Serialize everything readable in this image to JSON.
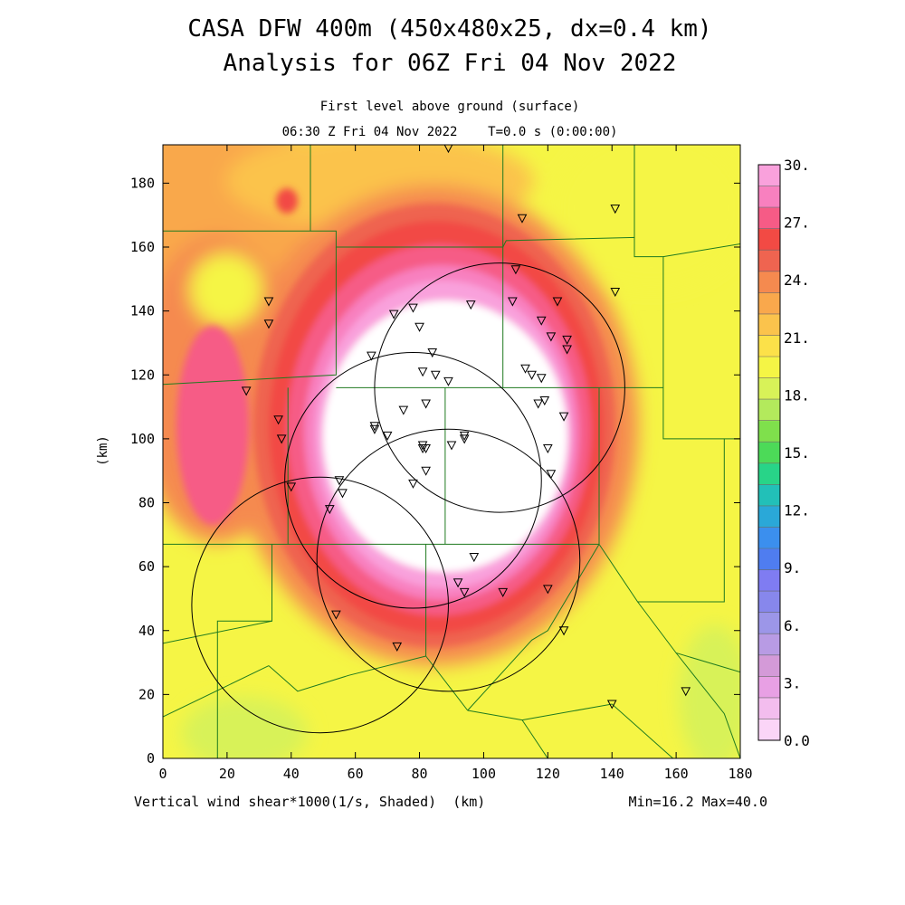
{
  "header": {
    "title_line1": "CASA DFW 400m (450x480x25, dx=0.4 km)",
    "title_line2": "Analysis for 06Z Fri 04 Nov 2022",
    "subtitle": "First level above ground (surface)",
    "time_line": "06:30 Z Fri 04 Nov 2022    T=0.0 s (0:00:00)"
  },
  "footer": {
    "variable_label": "Vertical wind shear*1000(1/s, Shaded)  (km)",
    "minmax": "Min=16.2 Max=40.0"
  },
  "axes": {
    "ylabel": "(km)",
    "xlim": [
      0,
      180
    ],
    "ylim": [
      0,
      192
    ],
    "xticks": [
      0,
      20,
      40,
      60,
      80,
      100,
      120,
      140,
      160,
      180
    ],
    "yticks": [
      0,
      20,
      40,
      60,
      80,
      100,
      120,
      140,
      160,
      180
    ]
  },
  "colorbar": {
    "levels": [
      0,
      1.5,
      3,
      4.5,
      6,
      7.5,
      9,
      10.5,
      12,
      13.5,
      15,
      16.5,
      18,
      19.5,
      21,
      22.5,
      24,
      25.5,
      27,
      28.5,
      30
    ],
    "tick_labels": [
      "0.0",
      "3.",
      "6.",
      "9.",
      "12.",
      "15.",
      "18.",
      "21.",
      "24.",
      "27.",
      "30."
    ],
    "colors": [
      "#fbd5f7",
      "#f3bdee",
      "#e8a0e4",
      "#d49ad8",
      "#b89be4",
      "#9c96e8",
      "#8787ec",
      "#7f7cf2",
      "#4f7df0",
      "#3b8fee",
      "#2aa8d8",
      "#22c0b8",
      "#28d488",
      "#4cda58",
      "#7fe04c",
      "#b3ea5c",
      "#d8f258",
      "#f5f545",
      "#fce149",
      "#fbc34c",
      "#f9a84c",
      "#f58a4f",
      "#ef6450",
      "#f24a44",
      "#f65b86",
      "#f880bf",
      "#f9a1dc"
    ]
  },
  "chart_data": {
    "type": "heatmap",
    "title": "CASA DFW 400m (450x480x25, dx=0.4 km)",
    "subtitle": "Analysis for 06Z Fri 04 Nov 2022",
    "xlabel": "(km)",
    "ylabel": "(km)",
    "xlim": [
      0,
      180
    ],
    "ylim": [
      0,
      192
    ],
    "value_range": {
      "min": 16.2,
      "max": 40.0
    },
    "field_description": "Vertical wind shear*1000(1/s, Shaded)",
    "saturated_core": {
      "center_km": [
        86,
        95
      ],
      "note": "values above 30 shown white"
    },
    "radar_rings": [
      {
        "center_km": [
          105,
          116
        ],
        "radius_km": 39
      },
      {
        "center_km": [
          78,
          87
        ],
        "radius_km": 40
      },
      {
        "center_km": [
          89,
          62
        ],
        "radius_km": 41
      },
      {
        "center_km": [
          49,
          48
        ],
        "radius_km": 40
      }
    ],
    "stations_km": [
      [
        33,
        143
      ],
      [
        33,
        136
      ],
      [
        26,
        115
      ],
      [
        36,
        106
      ],
      [
        37,
        100
      ],
      [
        65,
        126
      ],
      [
        72,
        139
      ],
      [
        78,
        141
      ],
      [
        80,
        135
      ],
      [
        84,
        127
      ],
      [
        81,
        121
      ],
      [
        85,
        120
      ],
      [
        89,
        118
      ],
      [
        96,
        142
      ],
      [
        110,
        153
      ],
      [
        109,
        143
      ],
      [
        113,
        122
      ],
      [
        115,
        120
      ],
      [
        118,
        119
      ],
      [
        123,
        143
      ],
      [
        118,
        137
      ],
      [
        121,
        132
      ],
      [
        126,
        131
      ],
      [
        126,
        128
      ],
      [
        117,
        111
      ],
      [
        119,
        112
      ],
      [
        125,
        107
      ],
      [
        82,
        111
      ],
      [
        75,
        109
      ],
      [
        66,
        104
      ],
      [
        66,
        103
      ],
      [
        70,
        101
      ],
      [
        81,
        97
      ],
      [
        82,
        97
      ],
      [
        81,
        98
      ],
      [
        90,
        98
      ],
      [
        94,
        100
      ],
      [
        94,
        101
      ],
      [
        120,
        97
      ],
      [
        121,
        89
      ],
      [
        82,
        90
      ],
      [
        78,
        86
      ],
      [
        55,
        87
      ],
      [
        56,
        83
      ],
      [
        40,
        85
      ],
      [
        52,
        78
      ],
      [
        97,
        63
      ],
      [
        92,
        55
      ],
      [
        94,
        52
      ],
      [
        106,
        52
      ],
      [
        120,
        53
      ],
      [
        125,
        40
      ],
      [
        54,
        45
      ],
      [
        73,
        35
      ],
      [
        141,
        172
      ],
      [
        112,
        169
      ],
      [
        141,
        146
      ],
      [
        140,
        17
      ],
      [
        163,
        21
      ],
      [
        89,
        191
      ]
    ],
    "county_boundaries_km": [
      [
        [
          46,
          192
        ],
        [
          46,
          165
        ],
        [
          0,
          165
        ]
      ],
      [
        [
          46,
          165
        ],
        [
          54,
          165
        ],
        [
          54,
          160
        ],
        [
          106,
          160
        ]
      ],
      [
        [
          54,
          160
        ],
        [
          54,
          120
        ],
        [
          0,
          117
        ]
      ],
      [
        [
          106,
          160
        ],
        [
          106,
          192
        ]
      ],
      [
        [
          106,
          160
        ],
        [
          107,
          162
        ],
        [
          147,
          163
        ],
        [
          147,
          160
        ]
      ],
      [
        [
          147,
          192
        ],
        [
          147,
          157
        ],
        [
          156,
          157
        ],
        [
          156,
          116
        ]
      ],
      [
        [
          156,
          157
        ],
        [
          180,
          161
        ]
      ],
      [
        [
          106,
          160
        ],
        [
          106,
          116
        ],
        [
          156,
          116
        ]
      ],
      [
        [
          54,
          116
        ],
        [
          106,
          116
        ]
      ],
      [
        [
          39,
          116
        ],
        [
          39,
          67
        ],
        [
          0,
          67
        ]
      ],
      [
        [
          39,
          67
        ],
        [
          136,
          67
        ]
      ],
      [
        [
          136,
          116
        ],
        [
          136,
          67
        ]
      ],
      [
        [
          156,
          116
        ],
        [
          156,
          100
        ],
        [
          180,
          100
        ]
      ],
      [
        [
          175,
          100
        ],
        [
          175,
          49
        ],
        [
          148,
          49
        ],
        [
          136,
          67
        ]
      ],
      [
        [
          88,
          116
        ],
        [
          88,
          67
        ]
      ],
      [
        [
          34,
          67
        ],
        [
          34,
          43
        ],
        [
          17,
          43
        ],
        [
          17,
          0
        ]
      ],
      [
        [
          34,
          43
        ],
        [
          0,
          36
        ]
      ],
      [
        [
          33,
          29
        ],
        [
          0,
          13
        ]
      ],
      [
        [
          33,
          29
        ],
        [
          42,
          21
        ],
        [
          58,
          26
        ],
        [
          82,
          32
        ]
      ],
      [
        [
          82,
          67
        ],
        [
          82,
          32
        ],
        [
          95,
          15
        ]
      ],
      [
        [
          95,
          15
        ],
        [
          115,
          37
        ],
        [
          120,
          40
        ],
        [
          136,
          67
        ]
      ],
      [
        [
          95,
          15
        ],
        [
          112,
          12
        ]
      ],
      [
        [
          112,
          12
        ],
        [
          120,
          0
        ]
      ],
      [
        [
          112,
          12
        ],
        [
          140,
          17
        ],
        [
          159,
          0
        ]
      ],
      [
        [
          148,
          49
        ],
        [
          160,
          33
        ],
        [
          180,
          27
        ]
      ],
      [
        [
          160,
          33
        ],
        [
          175,
          14
        ],
        [
          180,
          0
        ]
      ]
    ]
  }
}
